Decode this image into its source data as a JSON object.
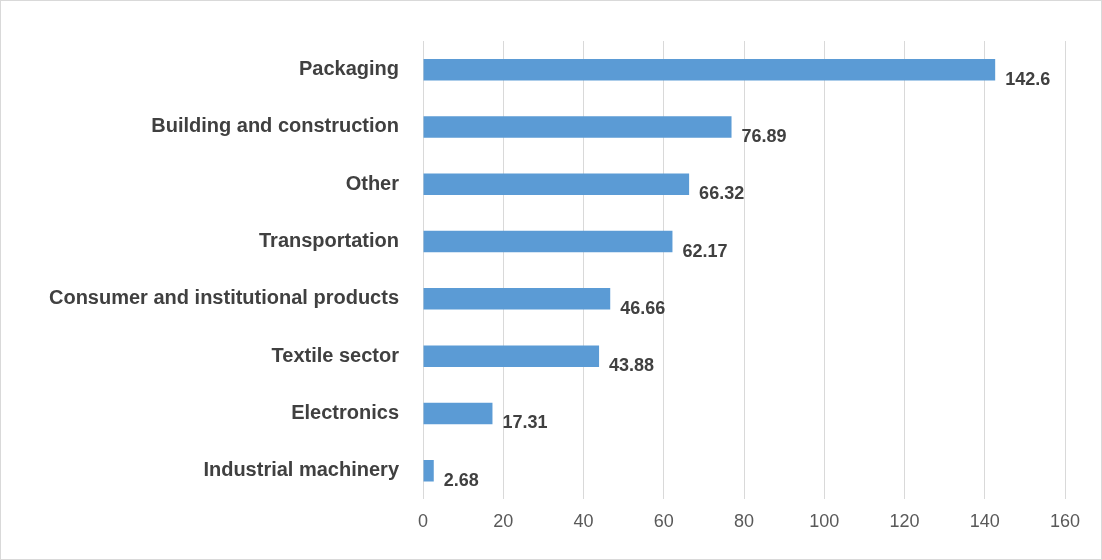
{
  "chart_data": {
    "type": "bar",
    "orientation": "horizontal",
    "categories": [
      "Packaging",
      "Building and construction",
      "Other",
      "Transportation",
      "Consumer and institutional products",
      "Textile sector",
      "Electronics",
      "Industrial machinery"
    ],
    "values": [
      142.6,
      76.89,
      66.32,
      62.17,
      46.66,
      43.88,
      17.31,
      2.68
    ],
    "color": "#5b9bd5",
    "xlim": [
      0,
      160
    ],
    "xticks": [
      0,
      20,
      40,
      60,
      80,
      100,
      120,
      140,
      160
    ],
    "grid": "x",
    "data_labels": true,
    "legend": false
  }
}
